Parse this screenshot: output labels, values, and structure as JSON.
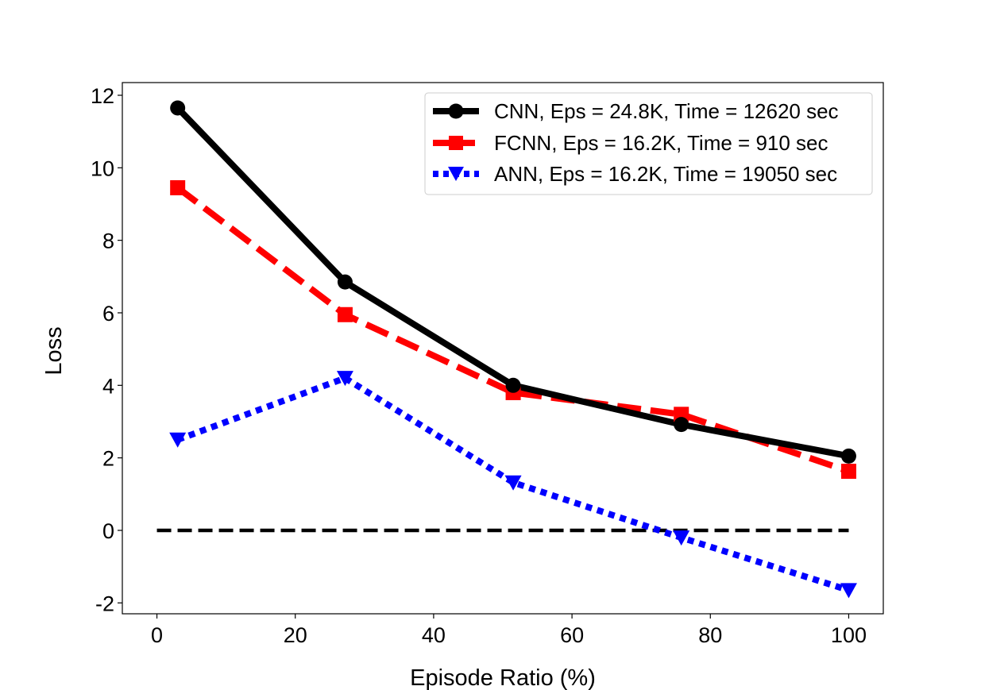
{
  "chart_data": {
    "type": "line",
    "title": "",
    "xlabel": "Episode Ratio (%)",
    "ylabel": "Loss",
    "xlim": [
      -5,
      105
    ],
    "ylim": [
      -2.3,
      12.35
    ],
    "xticks": [
      0,
      20,
      40,
      60,
      80,
      100
    ],
    "yticks": [
      -2,
      0,
      2,
      4,
      6,
      8,
      10,
      12
    ],
    "x": [
      3,
      27.2,
      51.5,
      75.8,
      100
    ],
    "series": [
      {
        "name": "CNN, Eps = 24.8K, Time = 12620 sec",
        "values": [
          11.65,
          6.85,
          4.0,
          2.92,
          2.05
        ],
        "color": "#000000",
        "linestyle": "solid",
        "marker": "circle"
      },
      {
        "name": "FCNN, Eps = 16.2K, Time = 910 sec",
        "values": [
          9.45,
          5.95,
          3.8,
          3.2,
          1.63
        ],
        "color": "#ff0000",
        "linestyle": "dashed",
        "marker": "square"
      },
      {
        "name": "ANN, Eps = 16.2K, Time = 19050 sec",
        "values": [
          2.5,
          4.2,
          1.32,
          -0.2,
          -1.65
        ],
        "color": "#0000ff",
        "linestyle": "dotted",
        "marker": "triangle-down"
      }
    ],
    "reference_line": {
      "y": 0,
      "x_range": [
        0,
        100
      ],
      "color": "#000000",
      "linestyle": "dashed"
    },
    "grid": false,
    "legend_position": "top-right"
  }
}
